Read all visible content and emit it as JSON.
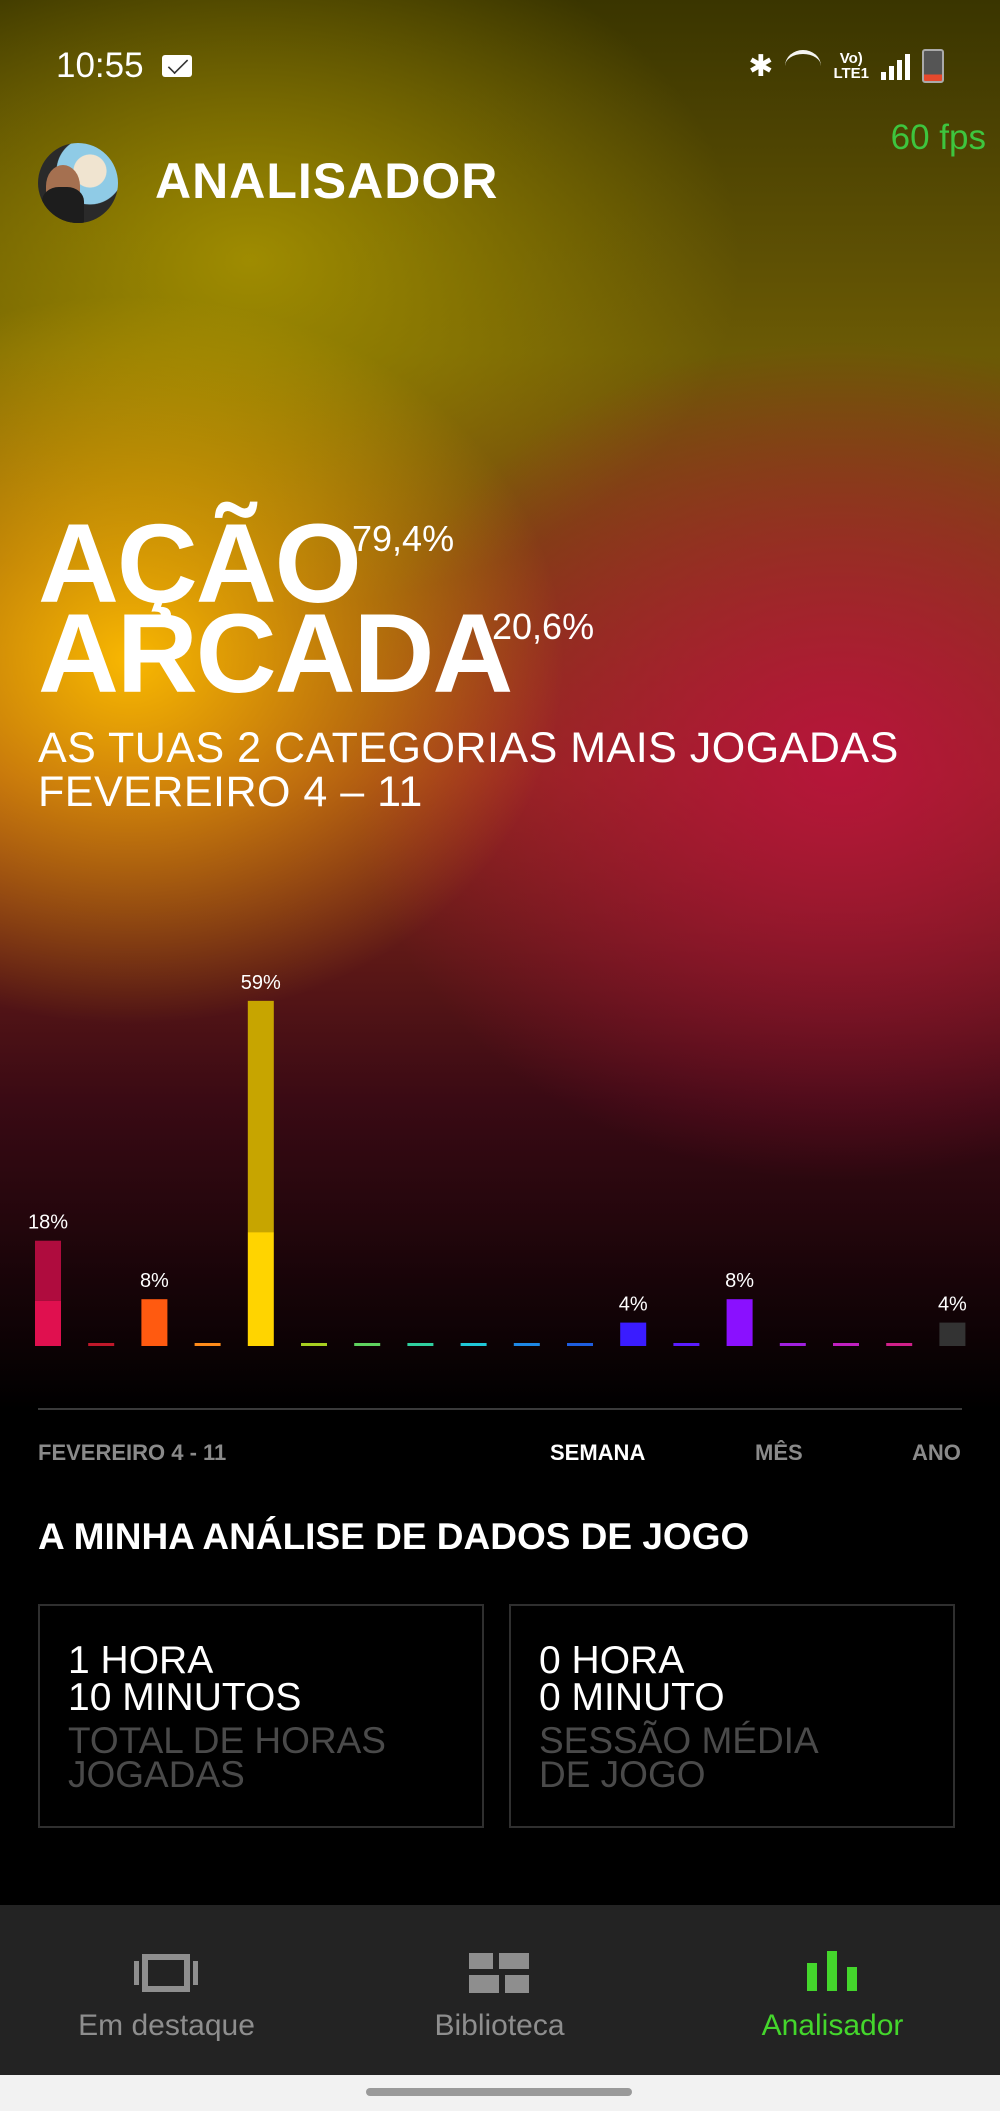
{
  "status_bar": {
    "time": "10:55",
    "fps": "60 fps"
  },
  "header": {
    "title": "ANALISADOR"
  },
  "top_categories": [
    {
      "name": "AÇÃO",
      "percent": "79,4%"
    },
    {
      "name": "ARCADA",
      "percent": "20,6%"
    }
  ],
  "subtitle": {
    "line1": "AS TUAS 2 CATEGORIAS MAIS JOGADAS",
    "line2": "FEVEREIRO 4 – 11"
  },
  "chart_data": {
    "type": "bar",
    "values": [
      18,
      0,
      8,
      0,
      59,
      0,
      0,
      0,
      0,
      0,
      0,
      4,
      0,
      8,
      0,
      0,
      0,
      4
    ],
    "labels": [
      "18%",
      "",
      "8%",
      "",
      "59%",
      "",
      "",
      "",
      "",
      "",
      "",
      "4%",
      "",
      "8%",
      "",
      "",
      "",
      "4%"
    ],
    "colors": [
      "#e0104f",
      "#c0182a",
      "#ff5a10",
      "#ff8c1a",
      "#ffd400",
      "#a8d020",
      "#5fd35f",
      "#30d0a0",
      "#20c8d8",
      "#1e88e5",
      "#1e5ee0",
      "#3a1cff",
      "#5a1cff",
      "#8a10ff",
      "#a020e0",
      "#c020c0",
      "#d0208a",
      "#333333"
    ],
    "highlight_fraction": [
      0.43,
      0,
      1,
      0,
      0.33,
      0,
      0,
      0,
      0,
      0,
      0,
      1,
      0,
      1,
      0,
      0,
      0,
      1
    ]
  },
  "range": {
    "date": "FEVEREIRO 4 - 11",
    "tabs": [
      "SEMANA",
      "MÊS",
      "ANO"
    ]
  },
  "section": {
    "title": "A MINHA ANÁLISE DE DADOS DE JOGO"
  },
  "cards": [
    {
      "value1": "1 HORA",
      "value2": "10 MINUTOS",
      "label1": "TOTAL DE HORAS",
      "label2": "JOGADAS"
    },
    {
      "value1": "0 HORA",
      "value2": "0 MINUTO",
      "label1": "SESSÃO MÉDIA",
      "label2": "DE JOGO"
    }
  ],
  "nav": [
    {
      "label": "Em destaque",
      "icon": "carousel-icon"
    },
    {
      "label": "Biblioteca",
      "icon": "library-icon"
    },
    {
      "label": "Analisador",
      "icon": "bar-chart-icon",
      "active": true
    }
  ],
  "colors": {
    "accent": "#44d62c",
    "fps": "#3ec53e"
  }
}
